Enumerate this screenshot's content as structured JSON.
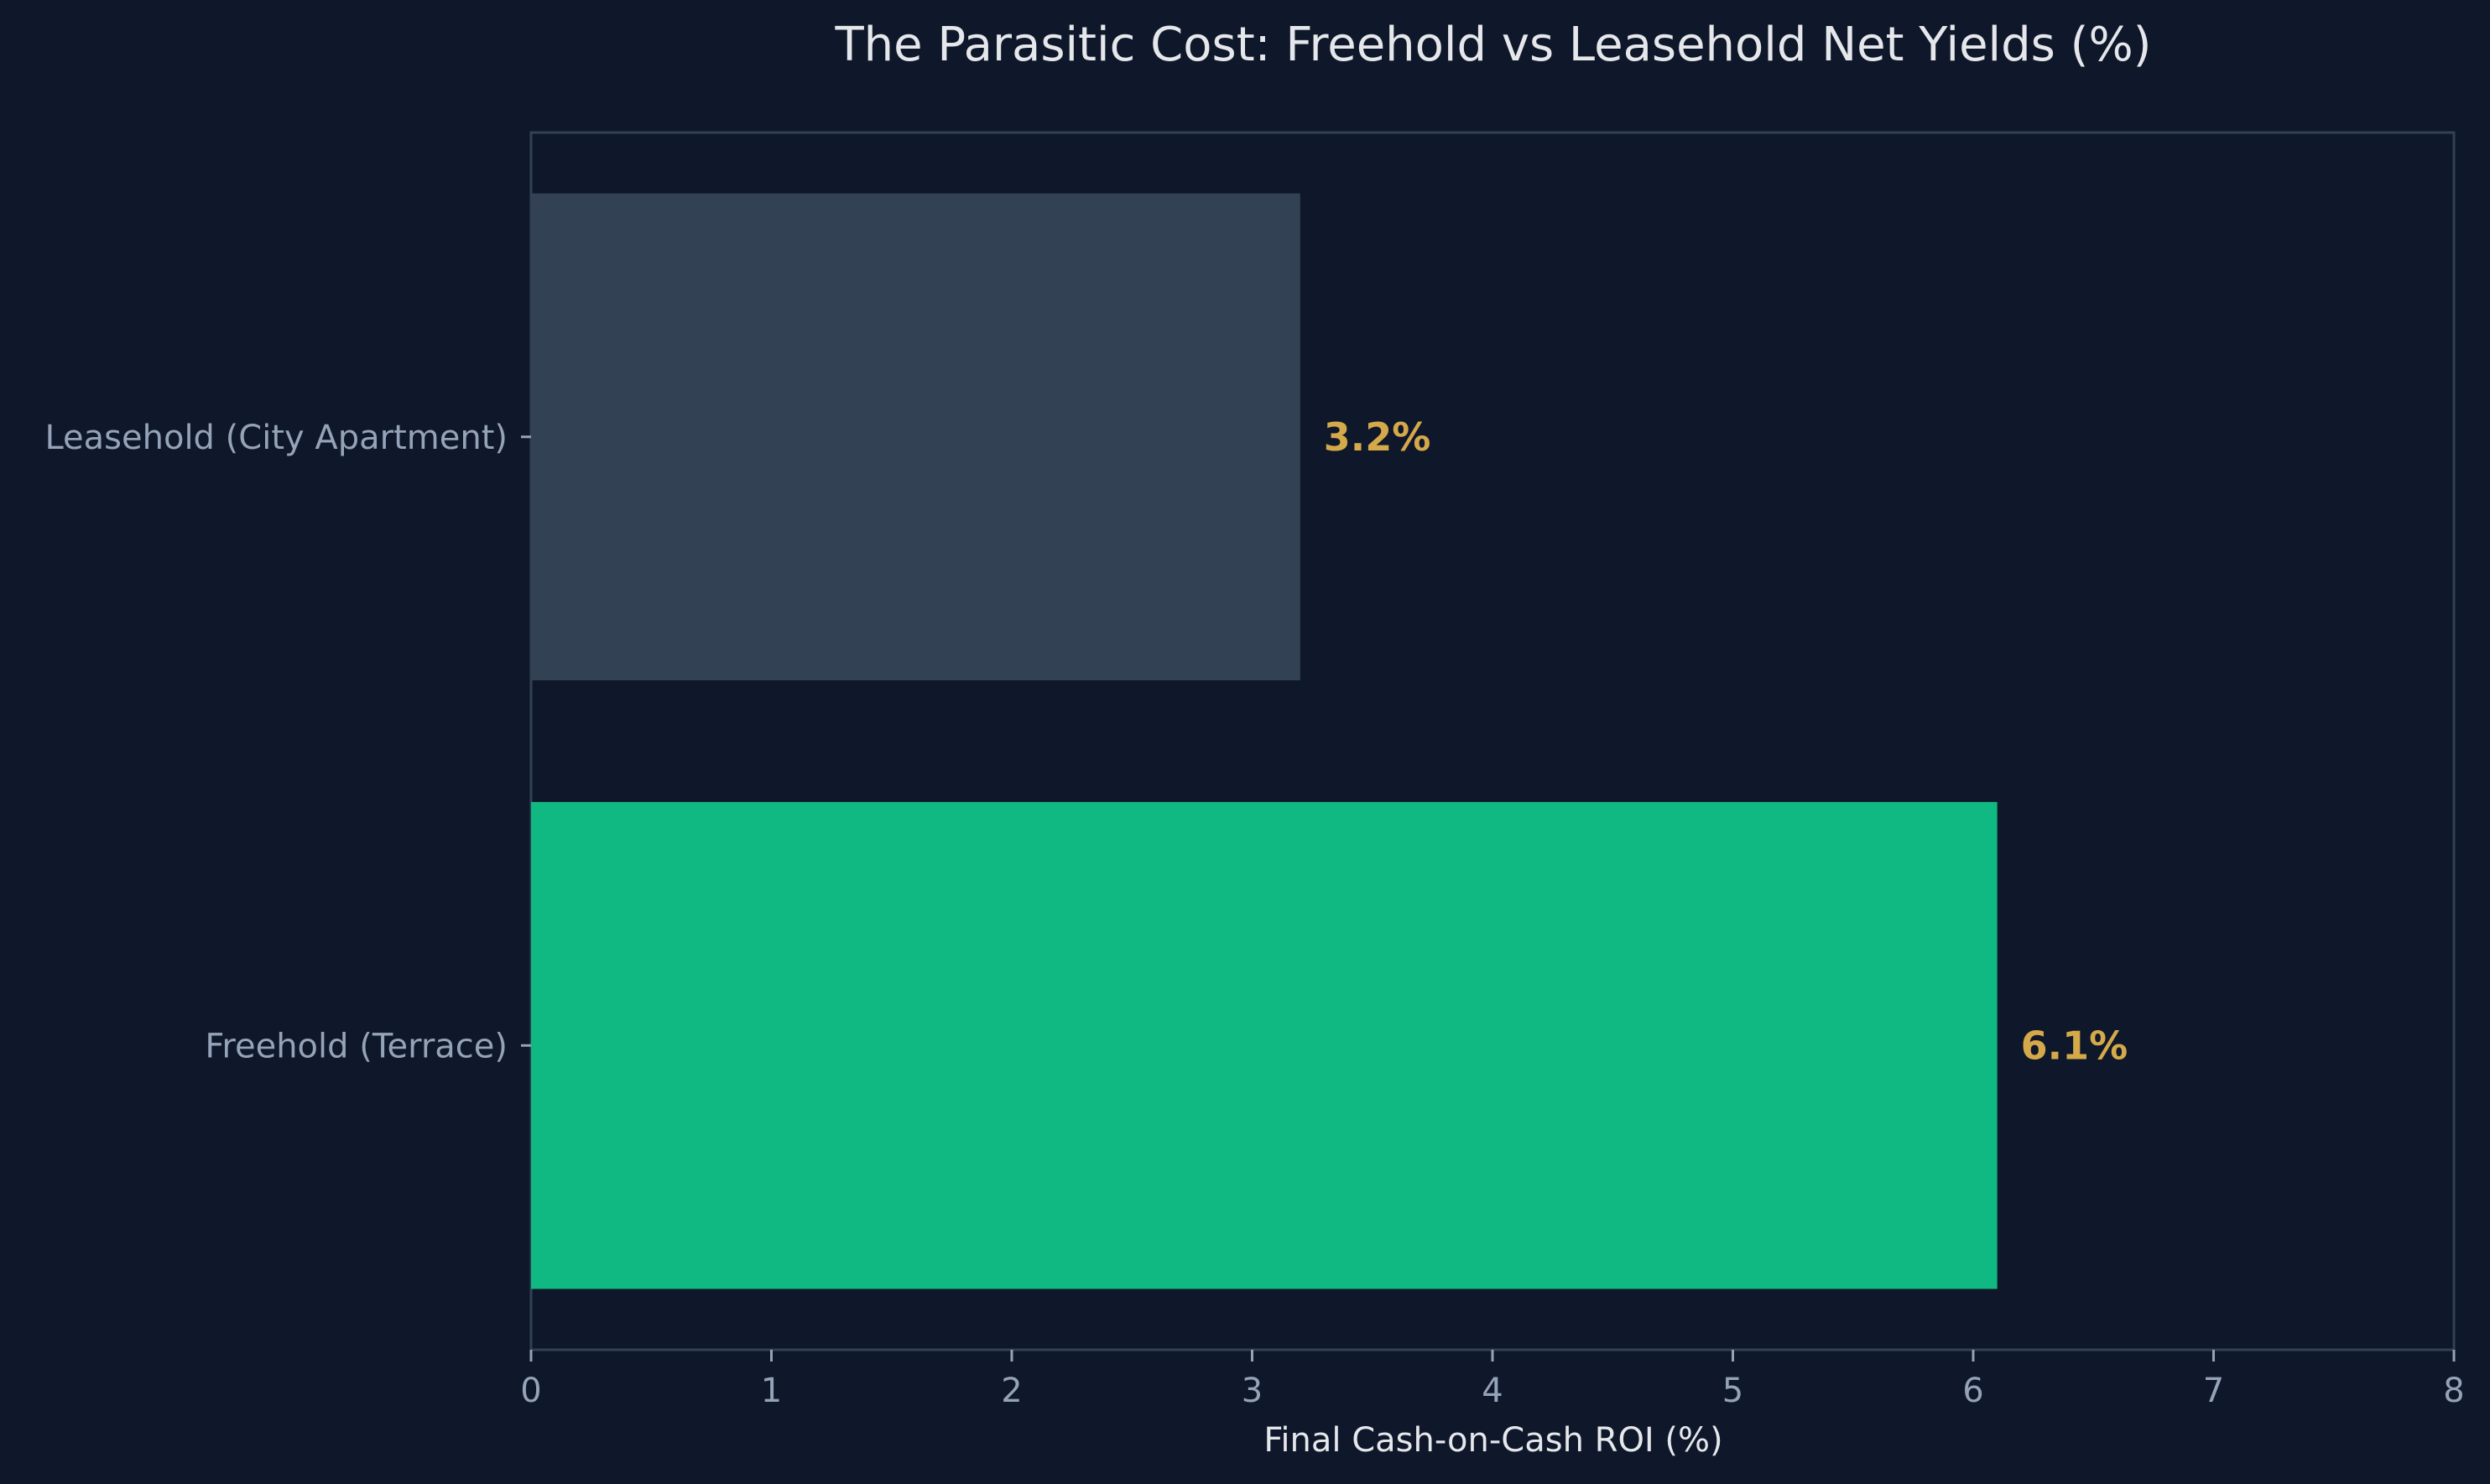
{
  "chart_data": {
    "type": "bar",
    "orientation": "horizontal",
    "title": "The Parasitic Cost: Freehold vs Leasehold Net Yields (%)",
    "xlabel": "Final Cash-on-Cash ROI (%)",
    "ylabel": "",
    "xlim": [
      0,
      8
    ],
    "xticks": [
      "0",
      "1",
      "2",
      "3",
      "4",
      "5",
      "6",
      "7",
      "8"
    ],
    "categories": [
      "Leasehold (City Apartment)",
      "Freehold (Terrace)"
    ],
    "values": [
      3.2,
      6.1
    ],
    "data_labels": [
      "3.2%",
      "6.1%"
    ],
    "bar_colors": [
      "#334155",
      "#10b981"
    ],
    "data_label_color": "#d4a94a",
    "grid": false,
    "legend": "none"
  },
  "colors": {
    "background": "#0f172a",
    "axis_line": "#334155",
    "tick_text": "#94a3b8",
    "title_text": "#e5e7eb"
  }
}
